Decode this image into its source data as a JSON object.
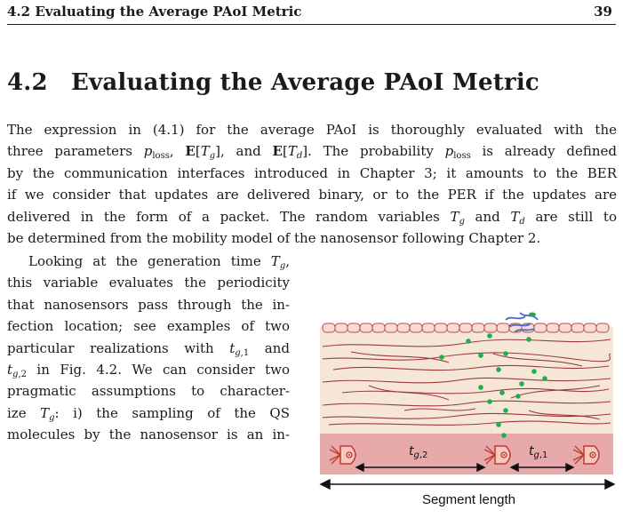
{
  "header": {
    "running_title": "4.2 Evaluating the Average PAoI Metric",
    "page_number": "39"
  },
  "section": {
    "number": "4.2",
    "title": "Evaluating the Average PAoI Metric"
  },
  "paragraph1": {
    "lines": [
      "The expression in (4.1) for the average PAoI is thoroughly evaluated with the",
      "three parameters p_loss, E[T_g], and E[T_d]. The probability p_loss is already defined",
      "by the communication interfaces introduced in Chapter 3; it amounts to the BER",
      "if we consider that updates are delivered binary, or to the PER if the updates are",
      "delivered in the form of a packet. The random variables T_g and T_d are still to",
      "be determined from the mobility model of the nanosensor following Chapter 2."
    ]
  },
  "paragraph2": {
    "lines": [
      "Looking at the generation time T_g,",
      "this variable evaluates the periodicity",
      "that nanosensors pass through the in-",
      "fection location; see examples of two",
      "particular realizations with t_g,1 and",
      "t_g,2 in Fig. 4.2. We can consider two",
      "pragmatic assumptions to character-",
      "ize T_g: i) the sampling of the QS",
      "molecules by the nanosensor is an in-"
    ]
  },
  "figure": {
    "label_tg2": "t_g,2",
    "label_tg1": "t_g,1",
    "segment_label": "Segment length",
    "colors": {
      "tissue": "#f6e6d8",
      "fiber": "#9a3b3b",
      "vessel": "#e8a9ab",
      "dot": "#1fae4b",
      "bacteria": "#4a67c9",
      "nanosensor": "#c0392b"
    }
  }
}
